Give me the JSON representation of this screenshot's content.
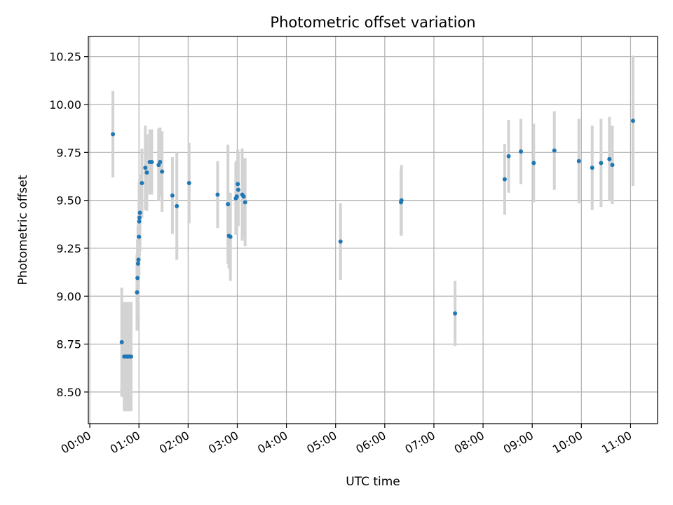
{
  "chart_data": {
    "type": "scatter",
    "title": "Photometric offset variation",
    "xlabel": "UTC time",
    "ylabel": "Photometric offset",
    "x_unit": "UTC time (hours)",
    "xlim": [
      -0.03,
      11.55
    ],
    "ylim": [
      8.335,
      10.355
    ],
    "x_ticks": [
      0,
      1,
      2,
      3,
      4,
      5,
      6,
      7,
      8,
      9,
      10,
      11
    ],
    "x_tick_labels": [
      "00:00",
      "01:00",
      "02:00",
      "03:00",
      "04:00",
      "05:00",
      "06:00",
      "07:00",
      "08:00",
      "09:00",
      "10:00",
      "11:00"
    ],
    "y_ticks": [
      8.5,
      8.75,
      9.0,
      9.25,
      9.5,
      9.75,
      10.0,
      10.25
    ],
    "y_tick_labels": [
      "8.50",
      "8.75",
      "9.00",
      "9.25",
      "9.50",
      "9.75",
      "10.00",
      "10.25"
    ],
    "grid": true,
    "point_color": "#1f77b4",
    "errorbar_color": "#d3d3d3",
    "points": [
      {
        "x": 0.47,
        "y": 9.845,
        "err": 0.225
      },
      {
        "x": 0.65,
        "y": 8.76,
        "err": 0.285
      },
      {
        "x": 0.7,
        "y": 8.685,
        "err": 0.285
      },
      {
        "x": 0.74,
        "y": 8.685,
        "err": 0.285
      },
      {
        "x": 0.77,
        "y": 8.685,
        "err": 0.285
      },
      {
        "x": 0.8,
        "y": 8.685,
        "err": 0.285
      },
      {
        "x": 0.84,
        "y": 8.685,
        "err": 0.285
      },
      {
        "x": 0.96,
        "y": 9.02,
        "err": 0.2
      },
      {
        "x": 0.97,
        "y": 9.095,
        "err": 0.2
      },
      {
        "x": 0.98,
        "y": 9.17,
        "err": 0.2
      },
      {
        "x": 0.99,
        "y": 9.19,
        "err": 0.2
      },
      {
        "x": 1.0,
        "y": 9.31,
        "err": 0.2
      },
      {
        "x": 1.005,
        "y": 9.39,
        "err": 0.2
      },
      {
        "x": 1.01,
        "y": 9.41,
        "err": 0.2
      },
      {
        "x": 1.02,
        "y": 9.435,
        "err": 0.2
      },
      {
        "x": 1.06,
        "y": 9.59,
        "err": 0.18
      },
      {
        "x": 1.13,
        "y": 9.67,
        "err": 0.22
      },
      {
        "x": 1.16,
        "y": 9.645,
        "err": 0.2
      },
      {
        "x": 1.22,
        "y": 9.7,
        "err": 0.17
      },
      {
        "x": 1.26,
        "y": 9.7,
        "err": 0.17
      },
      {
        "x": 1.4,
        "y": 9.685,
        "err": 0.19
      },
      {
        "x": 1.43,
        "y": 9.7,
        "err": 0.18
      },
      {
        "x": 1.47,
        "y": 9.65,
        "err": 0.21
      },
      {
        "x": 1.68,
        "y": 9.525,
        "err": 0.2
      },
      {
        "x": 1.77,
        "y": 9.47,
        "err": 0.28
      },
      {
        "x": 2.02,
        "y": 9.59,
        "err": 0.21
      },
      {
        "x": 2.6,
        "y": 9.53,
        "err": 0.175
      },
      {
        "x": 2.81,
        "y": 9.48,
        "err": 0.31
      },
      {
        "x": 2.83,
        "y": 9.315,
        "err": 0.17
      },
      {
        "x": 2.86,
        "y": 9.31,
        "err": 0.23
      },
      {
        "x": 2.97,
        "y": 9.51,
        "err": 0.19
      },
      {
        "x": 2.99,
        "y": 9.52,
        "err": 0.19
      },
      {
        "x": 3.01,
        "y": 9.585,
        "err": 0.18
      },
      {
        "x": 3.02,
        "y": 9.555,
        "err": 0.19
      },
      {
        "x": 3.1,
        "y": 9.53,
        "err": 0.24
      },
      {
        "x": 3.13,
        "y": 9.52,
        "err": 0.2
      },
      {
        "x": 3.16,
        "y": 9.49,
        "err": 0.23
      },
      {
        "x": 5.1,
        "y": 9.285,
        "err": 0.2
      },
      {
        "x": 6.33,
        "y": 9.49,
        "err": 0.17
      },
      {
        "x": 6.34,
        "y": 9.5,
        "err": 0.185
      },
      {
        "x": 7.43,
        "y": 8.91,
        "err": 0.17
      },
      {
        "x": 8.44,
        "y": 9.61,
        "err": 0.185
      },
      {
        "x": 8.52,
        "y": 9.73,
        "err": 0.19
      },
      {
        "x": 8.77,
        "y": 9.755,
        "err": 0.17
      },
      {
        "x": 9.03,
        "y": 9.695,
        "err": 0.205
      },
      {
        "x": 9.45,
        "y": 9.76,
        "err": 0.205
      },
      {
        "x": 9.95,
        "y": 9.705,
        "err": 0.22
      },
      {
        "x": 10.22,
        "y": 9.67,
        "err": 0.22
      },
      {
        "x": 10.4,
        "y": 9.695,
        "err": 0.23
      },
      {
        "x": 10.57,
        "y": 9.715,
        "err": 0.22
      },
      {
        "x": 10.63,
        "y": 9.685,
        "err": 0.205
      },
      {
        "x": 11.05,
        "y": 9.915,
        "err": 0.34
      }
    ]
  }
}
